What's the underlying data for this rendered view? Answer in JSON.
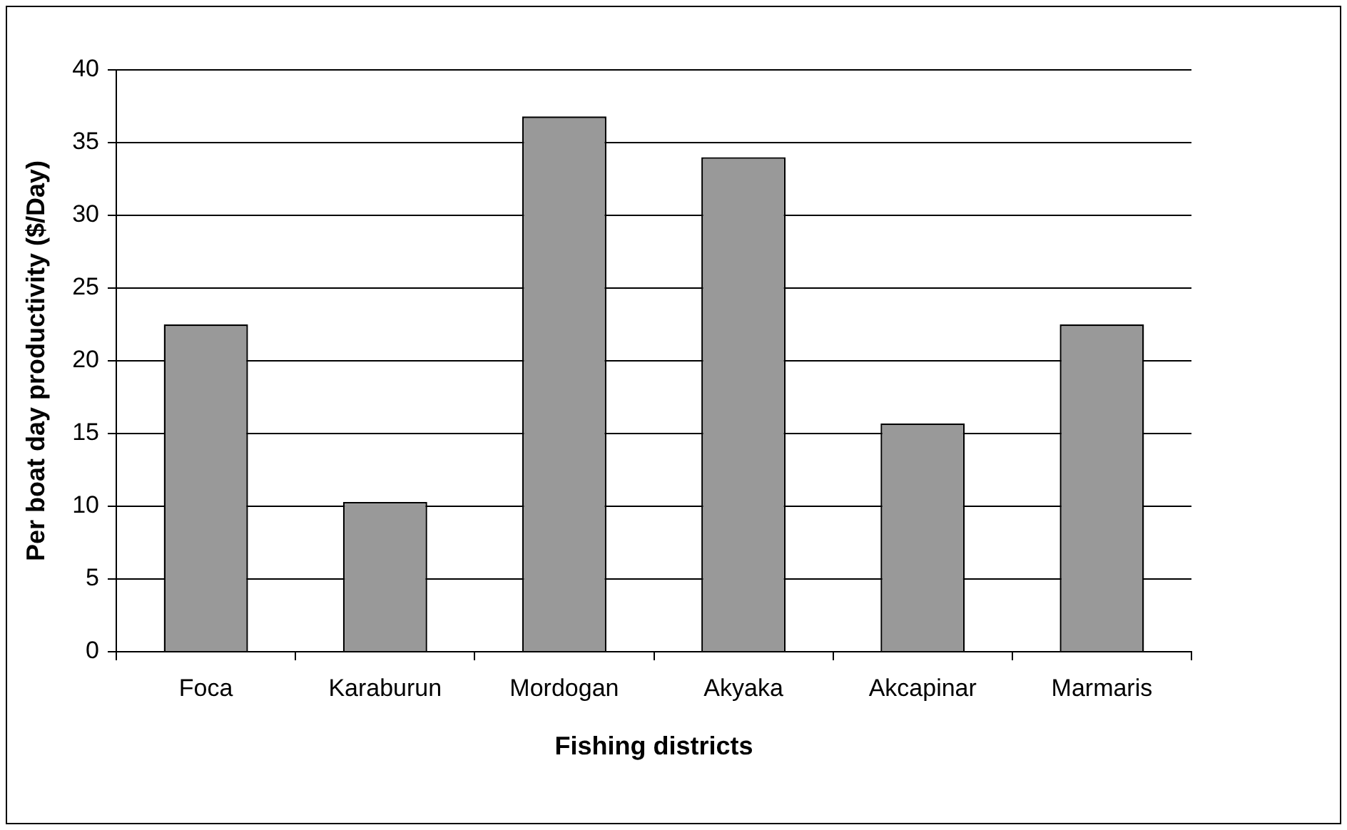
{
  "chart_data": {
    "type": "bar",
    "xlabel": "Fishing districts",
    "ylabel": "Per boat day productivity ($/Day)",
    "categories": [
      "Foca",
      "Karaburun",
      "Mordogan",
      "Akyaka",
      "Akcapinar",
      "Marmaris"
    ],
    "values": [
      22.5,
      10.3,
      36.8,
      34.0,
      15.7,
      22.5
    ],
    "color": "#999999",
    "ylim": [
      0,
      40
    ],
    "yticks": [
      0,
      5,
      10,
      15,
      20,
      25,
      30,
      35,
      40
    ],
    "grid": "y",
    "legend": false
  }
}
